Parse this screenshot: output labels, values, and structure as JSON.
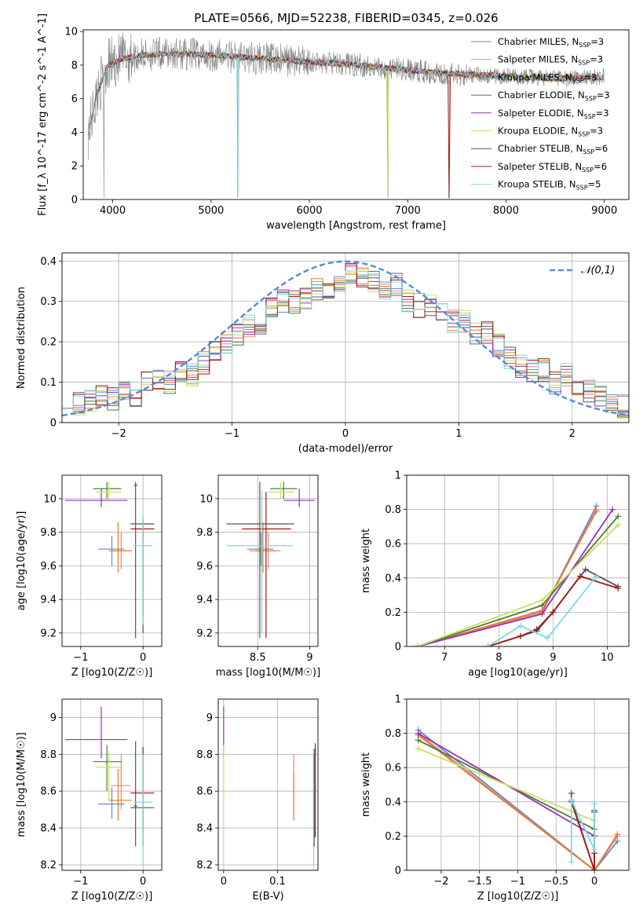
{
  "figure": {
    "title": "PLATE=0566, MJD=52238, FIBERID=0345, z=0.026"
  },
  "palette": {
    "Chabrier MILES": "#5b8bd6",
    "Salpeter MILES": "#f08080",
    "Kroupa MILES": "#e07b2a",
    "Chabrier ELODIE": "#4a7a3a",
    "Salpeter ELODIE": "#9a30b8",
    "Kroupa ELODIE": "#c8e060",
    "Chabrier STELIB": "#555555",
    "Salpeter STELIB": "#a01818",
    "Kroupa STELIB": "#80d8e0",
    "data": "#808080",
    "normal": "#5b8bd6"
  },
  "chart_data": [
    {
      "id": "spectrum",
      "type": "line",
      "title": "PLATE=0566, MJD=52238, FIBERID=0345, z=0.026",
      "xlabel": "wavelength [Angstrom, rest frame]",
      "ylabel": "Flux [f_λ 10^-17 erg cm^-2 s^-1 A^-1]",
      "xlim": [
        3700,
        9250
      ],
      "ylim": [
        0,
        10.1
      ],
      "xticks": [
        4000,
        5000,
        6000,
        7000,
        8000,
        9000
      ],
      "yticks": [
        0,
        2,
        4,
        6,
        8,
        10
      ],
      "legend_position": "upper-right",
      "series": [
        {
          "name": "Chabrier MILES, N_SSP=3"
        },
        {
          "name": "Salpeter MILES, N_SSP=3"
        },
        {
          "name": "Kroupa MILES, N_SSP=3"
        },
        {
          "name": "Chabrier ELODIE, N_SSP=3"
        },
        {
          "name": "Salpeter ELODIE, N_SSP=3"
        },
        {
          "name": "Kroupa ELODIE, N_SSP=3"
        },
        {
          "name": "Chabrier STELIB, N_SSP=6"
        },
        {
          "name": "Salpeter STELIB, N_SSP=6"
        },
        {
          "name": "Kroupa STELIB, N_SSP=5"
        }
      ],
      "continuum": {
        "x": [
          3750,
          3850,
          3950,
          4100,
          4300,
          4600,
          5000,
          5500,
          6000,
          6500,
          7000,
          7400,
          7800,
          8500,
          9000
        ],
        "y": [
          4.0,
          6.5,
          8.0,
          8.4,
          8.6,
          8.7,
          8.6,
          8.4,
          8.2,
          8.0,
          7.7,
          7.5,
          7.4,
          7.2,
          7.3
        ]
      }
    },
    {
      "id": "residuals",
      "type": "line",
      "xlabel": "(data-model)/error",
      "ylabel": "Normed distribution",
      "xlim": [
        -2.5,
        2.5
      ],
      "ylim": [
        0,
        0.42
      ],
      "xticks": [
        -2,
        -1,
        0,
        1,
        2
      ],
      "yticks": [
        0.0,
        0.1,
        0.2,
        0.3,
        0.4
      ],
      "grid": true,
      "legend_position": "upper-right",
      "normal_label": "𝒩(0,1)",
      "hist_x": [
        -2.5,
        -2.4,
        -2.3,
        -2.2,
        -2.1,
        -2.0,
        -1.9,
        -1.8,
        -1.7,
        -1.6,
        -1.5,
        -1.4,
        -1.3,
        -1.2,
        -1.1,
        -1.0,
        -0.9,
        -0.8,
        -0.7,
        -0.6,
        -0.5,
        -0.4,
        -0.3,
        -0.2,
        -0.1,
        0.0,
        0.1,
        0.2,
        0.3,
        0.4,
        0.5,
        0.6,
        0.7,
        0.8,
        0.9,
        1.0,
        1.1,
        1.2,
        1.3,
        1.4,
        1.5,
        1.6,
        1.7,
        1.8,
        1.9,
        2.0,
        2.1,
        2.2,
        2.3,
        2.4
      ],
      "hist_mean": [
        0.065,
        0.045,
        0.05,
        0.07,
        0.06,
        0.075,
        0.065,
        0.1,
        0.11,
        0.1,
        0.13,
        0.12,
        0.15,
        0.18,
        0.2,
        0.22,
        0.24,
        0.23,
        0.29,
        0.3,
        0.3,
        0.31,
        0.33,
        0.33,
        0.34,
        0.37,
        0.36,
        0.35,
        0.33,
        0.34,
        0.3,
        0.29,
        0.29,
        0.27,
        0.25,
        0.25,
        0.22,
        0.22,
        0.19,
        0.16,
        0.14,
        0.13,
        0.13,
        0.1,
        0.12,
        0.08,
        0.08,
        0.06,
        0.05,
        0.04
      ]
    },
    {
      "id": "age_vs_Z",
      "type": "scatter",
      "xlabel": "Z [log10(Z/Z☉)]",
      "ylabel": "age [log10(age/yr)]",
      "xlim": [
        -1.3,
        0.3
      ],
      "ylim": [
        9.12,
        10.14
      ],
      "xticks": [
        -1,
        0
      ],
      "yticks": [
        9.2,
        9.4,
        9.6,
        9.8,
        10.0
      ],
      "points": [
        {
          "s": "Chabrier MILES",
          "x": -0.5,
          "y": 9.7,
          "xe": [
            -0.72,
            -0.3
          ],
          "ye": [
            9.6,
            9.78
          ]
        },
        {
          "s": "Salpeter MILES",
          "x": -0.35,
          "y": 9.69,
          "xe": [
            -0.52,
            -0.2
          ],
          "ye": [
            9.58,
            9.8
          ]
        },
        {
          "s": "Kroupa MILES",
          "x": -0.4,
          "y": 9.69,
          "xe": [
            -0.55,
            -0.18
          ],
          "ye": [
            9.56,
            9.86
          ]
        },
        {
          "s": "Chabrier ELODIE",
          "x": -0.58,
          "y": 10.06,
          "xe": [
            -0.8,
            -0.35
          ],
          "ye": [
            10.0,
            10.1
          ]
        },
        {
          "s": "Salpeter ELODIE",
          "x": -0.67,
          "y": 9.99,
          "xe": [
            -1.25,
            -0.25
          ],
          "ye": [
            9.95,
            10.06
          ]
        },
        {
          "s": "Kroupa ELODIE",
          "x": -0.55,
          "y": 10.04,
          "xe": [
            -0.75,
            -0.35
          ],
          "ye": [
            10.0,
            10.1
          ]
        },
        {
          "s": "Chabrier STELIB",
          "x": -0.12,
          "y": 10.08,
          "xe": [
            -0.15,
            -0.09
          ],
          "ye": [
            9.17,
            10.1
          ]
        },
        {
          "s": "Salpeter STELIB",
          "x": 0.0,
          "y": 9.82,
          "xe": [
            -0.2,
            0.18
          ],
          "ye": [
            9.3,
            9.84
          ]
        },
        {
          "s": "Chabrier STELIB",
          "x": 0.0,
          "y": 9.85,
          "xe": [
            -0.2,
            0.18
          ],
          "ye": [
            9.2,
            9.88
          ]
        },
        {
          "s": "Kroupa STELIB",
          "x": 0.0,
          "y": 9.72,
          "xe": [
            -0.15,
            0.15
          ],
          "ye": [
            9.25,
            9.9
          ]
        }
      ]
    },
    {
      "id": "age_vs_mass",
      "type": "scatter",
      "xlabel": "mass [log10(M/M☉)]",
      "ylabel": "",
      "xlim": [
        8.12,
        9.08
      ],
      "ylim": [
        9.12,
        10.14
      ],
      "xticks": [
        8.5,
        9.0
      ],
      "yticks": [
        9.2,
        9.4,
        9.6,
        9.8,
        10.0
      ],
      "points": [
        {
          "s": "Chabrier MILES",
          "x": 8.53,
          "y": 9.7,
          "xe": [
            8.4,
            8.65
          ],
          "ye": [
            9.6,
            9.8
          ]
        },
        {
          "s": "Salpeter MILES",
          "x": 8.6,
          "y": 9.69,
          "xe": [
            8.48,
            8.72
          ],
          "ye": [
            9.58,
            9.8
          ]
        },
        {
          "s": "Kroupa MILES",
          "x": 8.55,
          "y": 9.69,
          "xe": [
            8.42,
            8.68
          ],
          "ye": [
            9.56,
            9.86
          ]
        },
        {
          "s": "Chabrier ELODIE",
          "x": 8.75,
          "y": 10.06,
          "xe": [
            8.62,
            8.88
          ],
          "ye": [
            10.0,
            10.1
          ]
        },
        {
          "s": "Salpeter ELODIE",
          "x": 8.9,
          "y": 9.99,
          "xe": [
            8.75,
            9.05
          ],
          "ye": [
            9.95,
            10.06
          ]
        },
        {
          "s": "Kroupa ELODIE",
          "x": 8.72,
          "y": 10.04,
          "xe": [
            8.6,
            8.85
          ],
          "ye": [
            10.0,
            10.1
          ]
        },
        {
          "s": "Chabrier STELIB",
          "x": 8.52,
          "y": 9.85,
          "xe": [
            8.2,
            8.85
          ],
          "ye": [
            9.17,
            10.1
          ]
        },
        {
          "s": "Salpeter STELIB",
          "x": 8.58,
          "y": 9.82,
          "xe": [
            8.35,
            8.82
          ],
          "ye": [
            9.17,
            10.04
          ]
        },
        {
          "s": "Kroupa STELIB",
          "x": 8.54,
          "y": 9.72,
          "xe": [
            8.2,
            8.84
          ],
          "ye": [
            9.2,
            10.05
          ]
        }
      ]
    },
    {
      "id": "mw_vs_age",
      "type": "line",
      "xlabel": "age [log10(age/yr)]",
      "ylabel": "mass weight",
      "xlim": [
        6.3,
        10.4
      ],
      "ylim": [
        0,
        1.0
      ],
      "xticks": [
        7,
        8,
        9,
        10
      ],
      "yticks": [
        0.0,
        0.2,
        0.4,
        0.6,
        0.8,
        1.0
      ],
      "grid": true,
      "series": [
        {
          "s": "Chabrier MILES",
          "x": [
            6.5,
            8.8,
            9.8
          ],
          "y": [
            0.0,
            0.2,
            0.82
          ]
        },
        {
          "s": "Salpeter MILES",
          "x": [
            6.5,
            8.8,
            9.8
          ],
          "y": [
            0.0,
            0.2,
            0.8
          ]
        },
        {
          "s": "Kroupa MILES",
          "x": [
            6.5,
            8.8,
            9.8
          ],
          "y": [
            0.0,
            0.21,
            0.79
          ]
        },
        {
          "s": "Chabrier ELODIE",
          "x": [
            6.5,
            8.8,
            10.2
          ],
          "y": [
            0.0,
            0.24,
            0.76
          ]
        },
        {
          "s": "Salpeter ELODIE",
          "x": [
            6.5,
            8.8,
            10.1
          ],
          "y": [
            0.0,
            0.19,
            0.8
          ]
        },
        {
          "s": "Kroupa ELODIE",
          "x": [
            6.5,
            8.8,
            10.2
          ],
          "y": [
            0.0,
            0.27,
            0.71
          ]
        },
        {
          "s": "Chabrier STELIB",
          "x": [
            7.8,
            8.4,
            8.7,
            9.0,
            9.6,
            10.2
          ],
          "y": [
            0.0,
            0.06,
            0.09,
            0.2,
            0.45,
            0.35
          ]
        },
        {
          "s": "Salpeter STELIB",
          "x": [
            7.8,
            8.4,
            8.7,
            9.0,
            9.5,
            10.2
          ],
          "y": [
            0.0,
            0.06,
            0.1,
            0.2,
            0.41,
            0.34
          ]
        },
        {
          "s": "Kroupa STELIB",
          "x": [
            7.8,
            8.4,
            8.9,
            9.8
          ],
          "y": [
            0.0,
            0.12,
            0.05,
            0.41
          ]
        }
      ]
    },
    {
      "id": "mass_vs_Z",
      "type": "scatter",
      "xlabel": "Z [log10(Z/Z☉)]",
      "ylabel": "mass [log10(M/M☉)]",
      "xlim": [
        -1.3,
        0.3
      ],
      "ylim": [
        8.17,
        9.1
      ],
      "xticks": [
        -1,
        0
      ],
      "yticks": [
        8.2,
        8.4,
        8.6,
        8.8,
        9.0
      ],
      "points": [
        {
          "s": "Chabrier MILES",
          "x": -0.5,
          "y": 8.53,
          "xe": [
            -0.72,
            -0.3
          ],
          "ye": [
            8.45,
            8.62
          ]
        },
        {
          "s": "Salpeter MILES",
          "x": -0.35,
          "y": 8.63,
          "xe": [
            -0.52,
            -0.2
          ],
          "ye": [
            8.5,
            8.8
          ]
        },
        {
          "s": "Kroupa MILES",
          "x": -0.4,
          "y": 8.55,
          "xe": [
            -0.55,
            -0.18
          ],
          "ye": [
            8.44,
            8.72
          ]
        },
        {
          "s": "Chabrier ELODIE",
          "x": -0.58,
          "y": 8.76,
          "xe": [
            -0.8,
            -0.35
          ],
          "ye": [
            8.6,
            8.85
          ]
        },
        {
          "s": "Salpeter ELODIE",
          "x": -0.67,
          "y": 8.88,
          "xe": [
            -1.25,
            -0.25
          ],
          "ye": [
            8.78,
            9.06
          ]
        },
        {
          "s": "Kroupa ELODIE",
          "x": -0.55,
          "y": 8.73,
          "xe": [
            -0.75,
            -0.35
          ],
          "ye": [
            8.55,
            8.82
          ]
        },
        {
          "s": "Chabrier STELIB",
          "x": -0.12,
          "y": 8.52,
          "xe": [
            -0.15,
            -0.09
          ],
          "ye": [
            8.3,
            8.87
          ]
        },
        {
          "s": "Salpeter STELIB",
          "x": 0.0,
          "y": 8.59,
          "xe": [
            -0.2,
            0.18
          ],
          "ye": [
            8.35,
            8.84
          ]
        },
        {
          "s": "Chabrier STELIB",
          "x": 0.0,
          "y": 8.51,
          "xe": [
            -0.2,
            0.18
          ],
          "ye": [
            8.3,
            8.8
          ]
        },
        {
          "s": "Kroupa STELIB",
          "x": 0.0,
          "y": 8.54,
          "xe": [
            -0.15,
            0.15
          ],
          "ye": [
            8.19,
            8.8
          ]
        }
      ]
    },
    {
      "id": "mass_vs_ebv",
      "type": "scatter",
      "xlabel": "E(B-V)",
      "ylabel": "",
      "xlim": [
        -0.01,
        0.175
      ],
      "ylim": [
        8.17,
        9.1
      ],
      "xticks": [
        0.0,
        0.1
      ],
      "yticks": [
        8.2,
        8.4,
        8.6,
        8.8,
        9.0
      ],
      "points": [
        {
          "s": "Salpeter ELODIE",
          "x": 0.0,
          "y": 8.88,
          "ye": [
            8.78,
            9.06
          ]
        },
        {
          "s": "Kroupa ELODIE",
          "x": 0.0,
          "y": 8.7,
          "ye": [
            8.55,
            8.85
          ]
        },
        {
          "s": "Salpeter MILES",
          "x": 0.13,
          "y": 8.68,
          "ye": [
            8.55,
            8.8
          ]
        },
        {
          "s": "Kroupa MILES",
          "x": 0.13,
          "y": 8.55,
          "ye": [
            8.44,
            8.7
          ]
        },
        {
          "s": "Salpeter STELIB",
          "x": 0.17,
          "y": 8.7,
          "ye": [
            8.35,
            8.86
          ]
        },
        {
          "s": "Kroupa STELIB",
          "x": 0.167,
          "y": 8.5,
          "ye": [
            8.19,
            8.8
          ]
        },
        {
          "s": "Chabrier STELIB",
          "x": 0.168,
          "y": 8.52,
          "ye": [
            8.3,
            8.83
          ]
        }
      ]
    },
    {
      "id": "mw_vs_Z",
      "type": "line",
      "xlabel": "Z [log10(Z/Z☉)]",
      "ylabel": "mass weight",
      "xlim": [
        -2.45,
        0.45
      ],
      "ylim": [
        0,
        1.0
      ],
      "xticks": [
        -2.0,
        -1.5,
        -1.0,
        -0.5,
        0.0
      ],
      "yticks": [
        0.0,
        0.2,
        0.4,
        0.6,
        0.8,
        1.0
      ],
      "grid": true,
      "series": [
        {
          "s": "Chabrier MILES",
          "x": [
            -2.3,
            0.0,
            0.3
          ],
          "y": [
            0.82,
            0.0,
            0.17
          ]
        },
        {
          "s": "Salpeter MILES",
          "x": [
            -2.3,
            0.0,
            0.3
          ],
          "y": [
            0.8,
            0.0,
            0.2
          ]
        },
        {
          "s": "Kroupa MILES",
          "x": [
            -2.3,
            0.0,
            0.3
          ],
          "y": [
            0.79,
            0.0,
            0.21
          ]
        },
        {
          "s": "Chabrier ELODIE",
          "x": [
            -2.3,
            0.0
          ],
          "y": [
            0.76,
            0.24
          ]
        },
        {
          "s": "Salpeter ELODIE",
          "x": [
            -2.3,
            0.0
          ],
          "y": [
            0.8,
            0.2
          ]
        },
        {
          "s": "Kroupa ELODIE",
          "x": [
            -2.3,
            0.0
          ],
          "y": [
            0.71,
            0.29
          ]
        },
        {
          "s": "Chabrier STELIB",
          "x": [
            -0.3,
            -0.3,
            0.0,
            0.0,
            0.0
          ],
          "y": [
            0.45,
            0.4,
            0.0,
            0.35,
            0.2
          ]
        },
        {
          "s": "Salpeter STELIB",
          "x": [
            -0.3,
            0.0,
            0.0,
            0.0
          ],
          "y": [
            0.41,
            0.0,
            0.34,
            0.1
          ]
        },
        {
          "s": "Kroupa STELIB",
          "x": [
            -0.3,
            -0.3,
            0.0,
            0.0
          ],
          "y": [
            0.05,
            0.41,
            0.12,
            0.39
          ]
        }
      ]
    }
  ]
}
